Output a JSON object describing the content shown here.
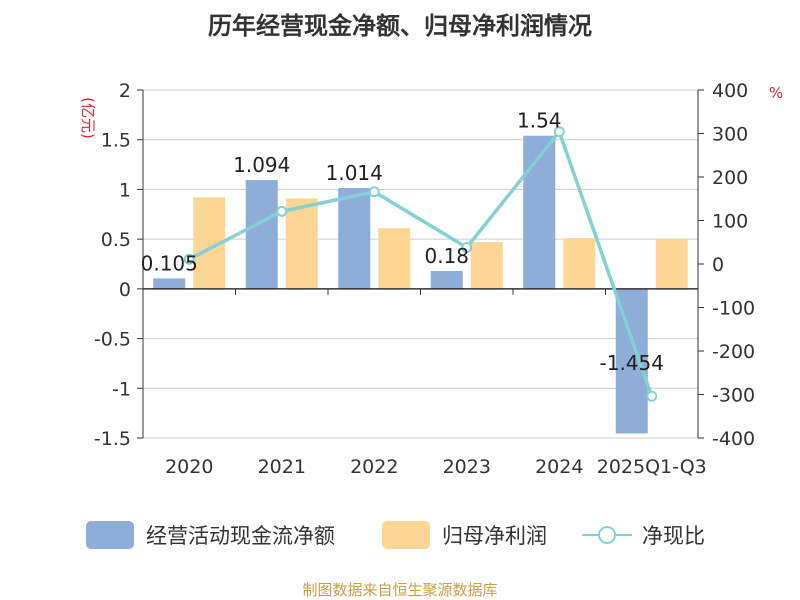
{
  "title": "历年经营现金净额、归母净利润情况",
  "source_note": "制图数据来自恒生聚源数据库",
  "colors": {
    "cash": "#8eadd9",
    "profit": "#fdd594",
    "ratio": "#83d0d5",
    "unit": "#d9262b"
  },
  "chart_data": {
    "type": "bar",
    "categories": [
      "2020",
      "2021",
      "2022",
      "2023",
      "2024",
      "2025Q1-Q3"
    ],
    "left_unit": "(亿元)",
    "right_unit": "%",
    "left_ticks": [
      "2",
      "1.5",
      "1",
      "0.5",
      "0",
      "-0.5",
      "-1",
      "-1.5"
    ],
    "right_ticks": [
      "400",
      "300",
      "200",
      "100",
      "0",
      "-100",
      "-200",
      "-300",
      "-400"
    ],
    "ylim": [
      -1.5,
      2
    ],
    "ylim_right": [
      -400,
      400
    ],
    "grid": true,
    "legend_position": "bottom",
    "series": [
      {
        "name": "经营活动现金流净额",
        "type": "bar",
        "axis": "left",
        "values": [
          0.105,
          1.094,
          1.014,
          0.18,
          1.54,
          -1.454
        ],
        "labels": [
          "0.105",
          "1.094",
          "1.014",
          "0.18",
          "1.54",
          "-1.454"
        ]
      },
      {
        "name": "归母净利润",
        "type": "bar",
        "axis": "left",
        "values": [
          0.92,
          0.91,
          0.61,
          0.47,
          0.51,
          0.5
        ]
      },
      {
        "name": "净现比",
        "type": "line",
        "axis": "right",
        "values": [
          11,
          121,
          166,
          38,
          304,
          -304
        ]
      }
    ]
  }
}
